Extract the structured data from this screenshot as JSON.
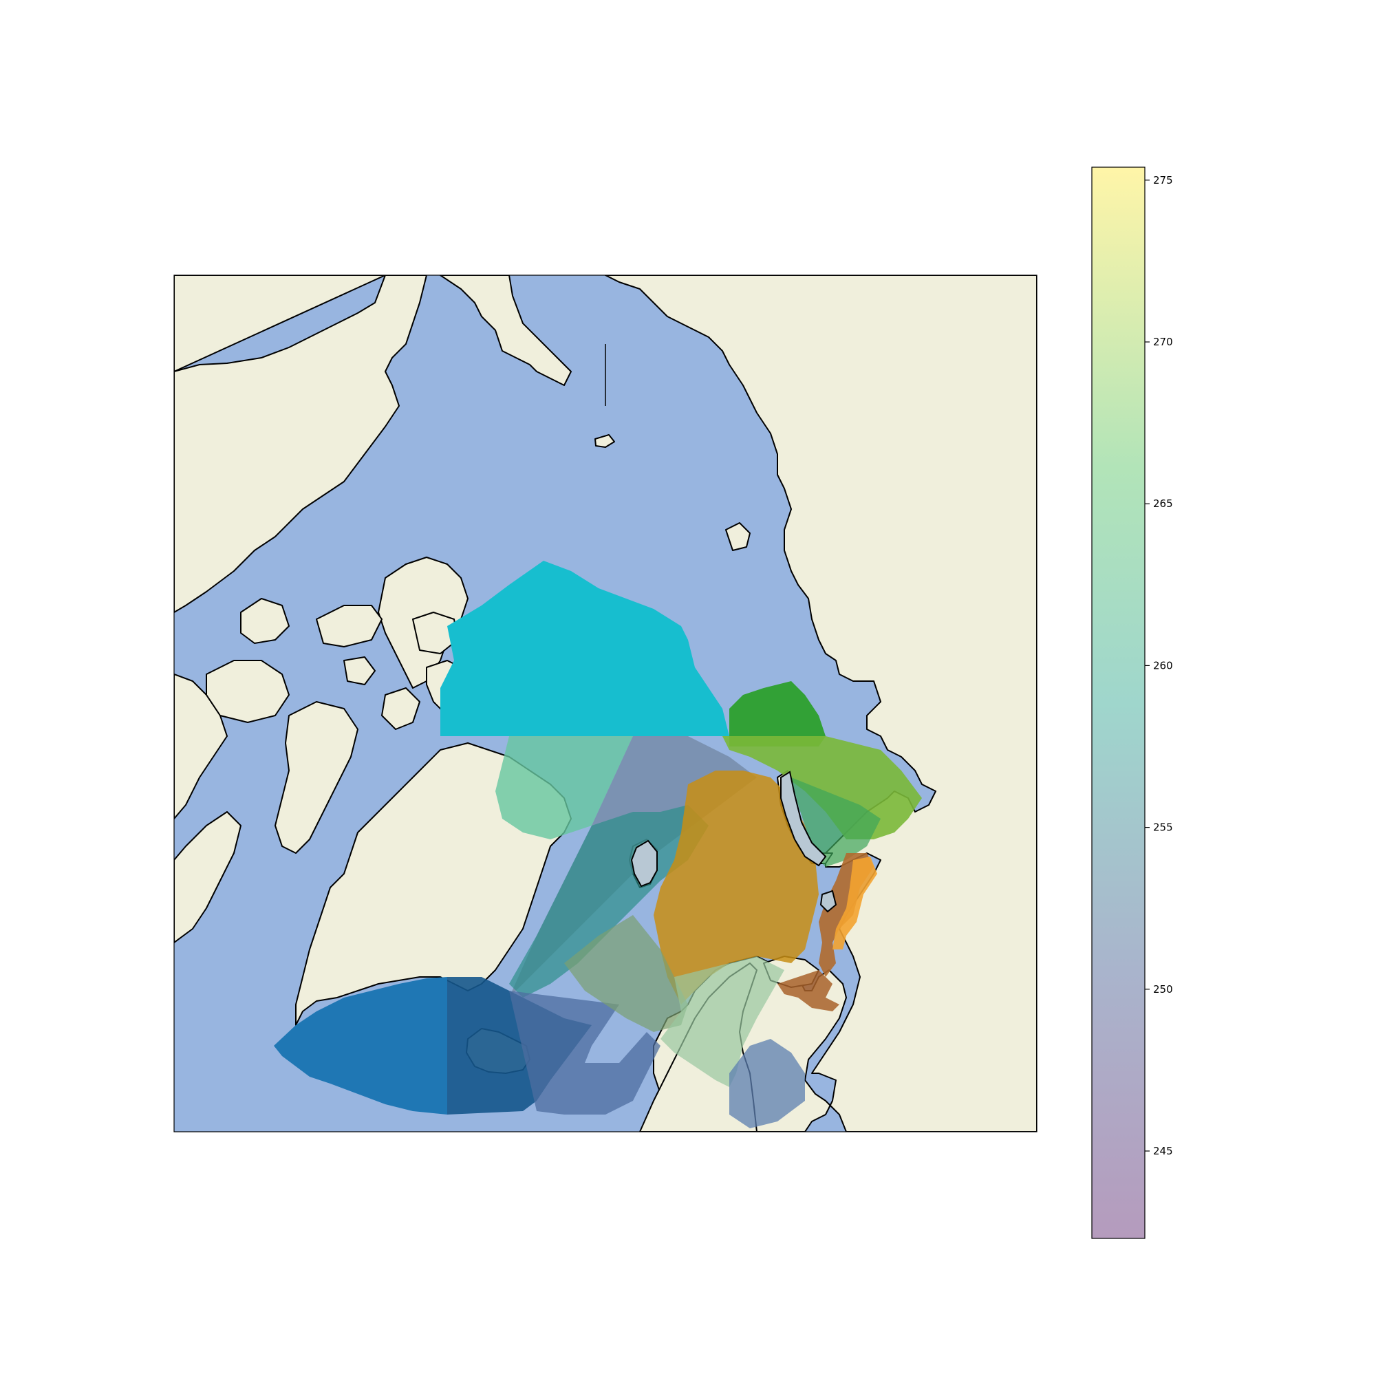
{
  "map": {
    "projection": "north-polar-stereographic",
    "ocean_color": "#98b5e0",
    "land_color": "#f0efdc",
    "coastline_color": "#000000",
    "overlays": [
      {
        "name": "arctic-swath",
        "color": "#17becf"
      },
      {
        "name": "barents-green-swath",
        "color": "#2ca02c"
      },
      {
        "name": "kara-orange-swath",
        "color": "#ff7f0e"
      },
      {
        "name": "iceland-blue-swath",
        "color": "#1f77b4"
      },
      {
        "name": "greenland-sea-swath",
        "color": "#66c7a0"
      }
    ]
  },
  "colorbar": {
    "colormap": "viridis",
    "alpha": 0.4,
    "vmin": 242.3,
    "vmax": 275.4,
    "ticks": [
      "245",
      "250",
      "255",
      "260",
      "265",
      "270",
      "275"
    ]
  }
}
